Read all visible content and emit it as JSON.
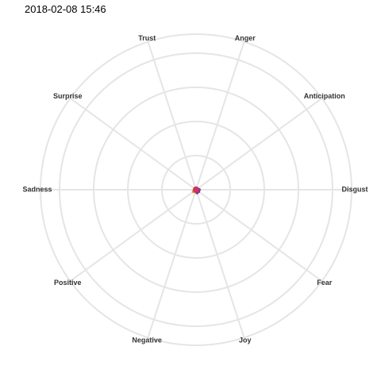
{
  "chart_data": {
    "type": "radar",
    "title": "2018-02-08 15:46",
    "categories": [
      "Disgust",
      "Anticipation",
      "Anger",
      "Trust",
      "Surprise",
      "Sadness",
      "Positive",
      "Negative",
      "Joy",
      "Fear"
    ],
    "rlim": [
      0,
      1
    ],
    "grid": true,
    "series": [
      {
        "color": "#F0E442",
        "values": [
          0.01,
          0.01,
          0.01,
          0.01,
          0.01,
          0.01,
          0.01,
          0.01,
          0.01,
          0.01
        ]
      },
      {
        "color": "#E69F00",
        "values": [
          0.01,
          0.01,
          0.01,
          0.01,
          0.01,
          0.01,
          0.02,
          0.01,
          0.01,
          0.01
        ]
      },
      {
        "color": "#7B3294",
        "values": [
          0.02,
          0.01,
          0.01,
          0.01,
          0.01,
          0.01,
          0.01,
          0.01,
          0.02,
          0.02
        ]
      },
      {
        "color": "#CC3366",
        "values": [
          0.01,
          0.01,
          0.01,
          0.01,
          0.01,
          0.01,
          0.01,
          0.01,
          0.01,
          0.01
        ]
      }
    ]
  }
}
